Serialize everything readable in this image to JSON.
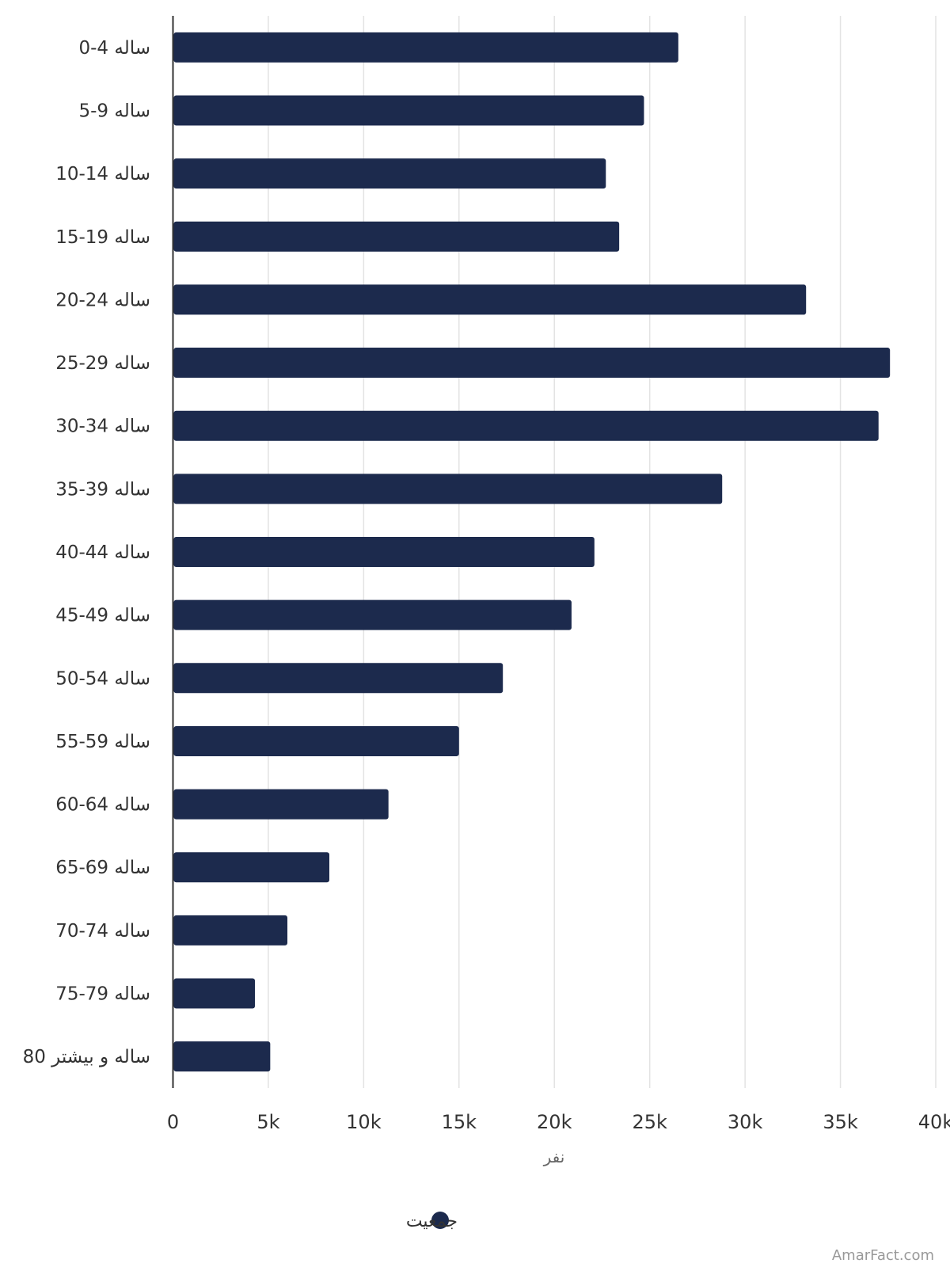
{
  "chart_data": {
    "type": "bar",
    "orientation": "horizontal",
    "categories": [
      "0-4 ساله",
      "5-9 ساله",
      "10-14 ساله",
      "15-19 ساله",
      "20-24 ساله",
      "25-29 ساله",
      "30-34 ساله",
      "35-39 ساله",
      "40-44 ساله",
      "45-49 ساله",
      "50-54 ساله",
      "55-59 ساله",
      "60-64 ساله",
      "65-69 ساله",
      "70-74 ساله",
      "75-79 ساله",
      "80 ساله و بیشتر"
    ],
    "series": [
      {
        "name": "جمعیت",
        "color": "#1c2a4d",
        "values": [
          26500,
          24700,
          22700,
          23400,
          33200,
          37600,
          37000,
          28800,
          22100,
          20900,
          17300,
          15000,
          11300,
          8200,
          6000,
          4300,
          5100
        ]
      }
    ],
    "xlabel": "نفر",
    "ylabel": "",
    "xlim": [
      0,
      40000
    ],
    "x_ticks": [
      "0",
      "5k",
      "10k",
      "15k",
      "20k",
      "25k",
      "30k",
      "35k",
      "40k"
    ],
    "grid": "vertical",
    "legend": "bottom-center"
  },
  "watermark": "AmarFact.com"
}
